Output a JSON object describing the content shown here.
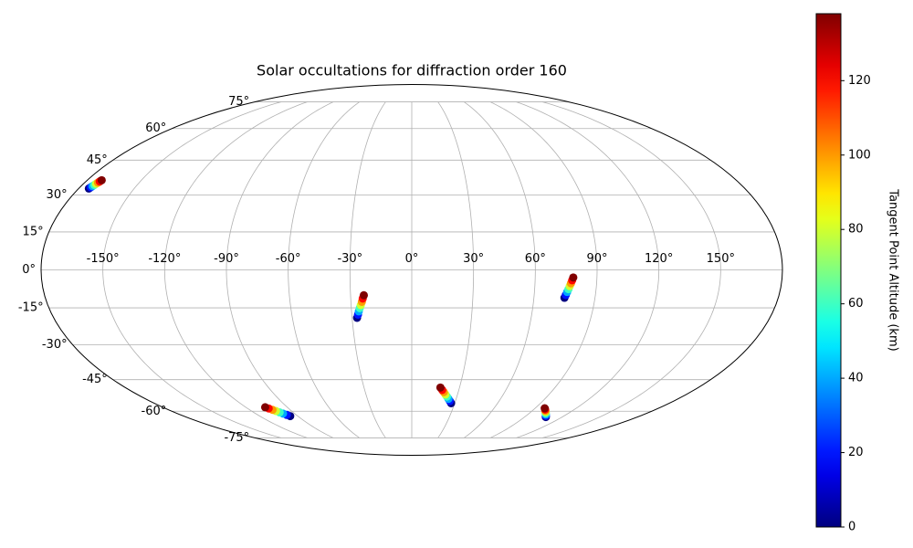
{
  "chart_data": {
    "type": "scatter",
    "projection": "mollweide",
    "title": "Solar occultations for diffraction order 160",
    "x": [
      -174.5,
      -174.1,
      -173.8,
      -173.4,
      -173.1,
      -172.7,
      -172.4,
      -172.0,
      -27.5,
      -26.9,
      -26.4,
      -25.8,
      -25.2,
      -24.6,
      -24.1,
      -23.5,
      75,
      75.5,
      76,
      76.5,
      77,
      77.5,
      78,
      78.5,
      -96,
      -97.4,
      -98.9,
      -100.3,
      -101.7,
      -103.1,
      -104.6,
      -106,
      27.5,
      26.1,
      24.8,
      23.4,
      22.1,
      20.7,
      19.4,
      18,
      107,
      105.6,
      104.1,
      102.7,
      101.3,
      99.9,
      98.4,
      97
    ],
    "y": [
      32.7,
      33.2,
      33.7,
      34.2,
      34.7,
      35.2,
      35.7,
      36.2,
      -19,
      -17.7,
      -16.4,
      -15.1,
      -13.9,
      -12.6,
      -11.3,
      -10,
      -11,
      -9.9,
      -8.7,
      -7.6,
      -6.4,
      -5.3,
      -4.1,
      -3,
      -62.5,
      -61.9,
      -61.2,
      -60.6,
      -59.9,
      -59.3,
      -58.6,
      -58,
      -56,
      -54.9,
      -53.9,
      -52.8,
      -51.8,
      -50.7,
      -49.7,
      -48.6,
      -63,
      -62.4,
      -61.7,
      -61.1,
      -60.4,
      -59.8,
      -59.1,
      -58.5
    ],
    "color_values": [
      0,
      20,
      40,
      60,
      80,
      100,
      120,
      138,
      0,
      20,
      40,
      60,
      80,
      100,
      120,
      138,
      0,
      20,
      40,
      60,
      80,
      100,
      120,
      138,
      0,
      20,
      40,
      60,
      80,
      100,
      120,
      138,
      0,
      20,
      40,
      60,
      80,
      100,
      120,
      138,
      0,
      20,
      40,
      60,
      80,
      100,
      120,
      138
    ],
    "xlim": [
      -180,
      180
    ],
    "ylim": [
      -90,
      90
    ],
    "xticks": [
      {
        "value": -150,
        "label": "-150°"
      },
      {
        "value": -120,
        "label": "-120°"
      },
      {
        "value": -90,
        "label": "-90°"
      },
      {
        "value": -60,
        "label": "-60°"
      },
      {
        "value": -30,
        "label": "-30°"
      },
      {
        "value": 0,
        "label": "0°"
      },
      {
        "value": 30,
        "label": "30°"
      },
      {
        "value": 60,
        "label": "60°"
      },
      {
        "value": 90,
        "label": "90°"
      },
      {
        "value": 120,
        "label": "120°"
      },
      {
        "value": 150,
        "label": "150°"
      }
    ],
    "yticks": [
      {
        "value": -75,
        "label": "-75°"
      },
      {
        "value": -60,
        "label": "-60°"
      },
      {
        "value": -45,
        "label": "-45°"
      },
      {
        "value": -30,
        "label": "-30°"
      },
      {
        "value": -15,
        "label": "-15°"
      },
      {
        "value": 0,
        "label": "0°"
      },
      {
        "value": 15,
        "label": "15°"
      },
      {
        "value": 30,
        "label": "30°"
      },
      {
        "value": 45,
        "label": "45°"
      },
      {
        "value": 60,
        "label": "60°"
      },
      {
        "value": 75,
        "label": "75°"
      }
    ],
    "grid": true,
    "colorbar": {
      "label": "Tangent Point Altitude (km)",
      "colormap": "jet",
      "lim": [
        0,
        138
      ],
      "ticks": [
        0,
        20,
        40,
        60,
        80,
        100,
        120
      ]
    }
  }
}
